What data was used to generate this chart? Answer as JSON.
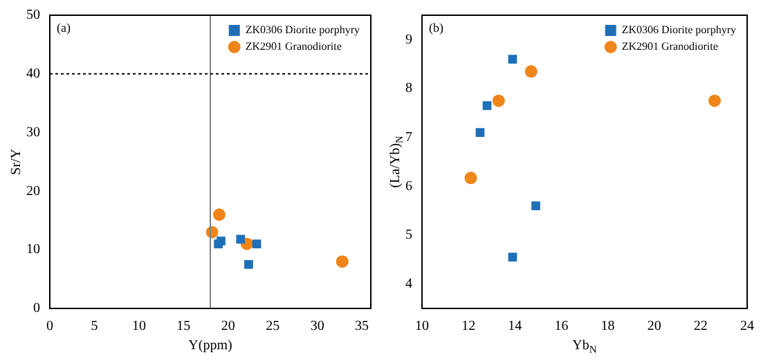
{
  "chart_data": [
    {
      "type": "scatter",
      "xlabel": "Y(ppm)",
      "ylabel": "Sr/Y",
      "annotations": [
        "(a)"
      ],
      "xlim": [
        0,
        36
      ],
      "xticks": [
        0,
        5,
        10,
        15,
        20,
        25,
        30,
        35
      ],
      "ylim": [
        0,
        50
      ],
      "yticks": [
        0,
        10,
        20,
        30,
        40,
        50
      ],
      "grid": false,
      "legend": "top right",
      "ref_lines": [
        {
          "axis": "x",
          "value": 18,
          "color": "#808080",
          "line_style": "solid"
        },
        {
          "axis": "y",
          "value": 40,
          "color": "#000000",
          "line_style": "dotted"
        }
      ],
      "series": [
        {
          "name": "ZK0306 Diorite porphyry",
          "color": "#1f6fb8",
          "marker": "square",
          "x": [
            18.9,
            19.2,
            21.4,
            23.2,
            22.3
          ],
          "values": [
            11,
            11.5,
            11.8,
            11,
            7.5
          ]
        },
        {
          "name": "ZK2901 Granodiorite",
          "color": "#f0861a",
          "marker": "circle",
          "x": [
            18.2,
            19,
            22.1,
            32.8
          ],
          "values": [
            13,
            16,
            11,
            8
          ]
        }
      ]
    },
    {
      "type": "scatter",
      "xlabel": "Yb$_{N}$",
      "ylabel": "(La/Yb)$_{N}$",
      "annotations": [
        "(b)"
      ],
      "xlim": [
        10,
        24
      ],
      "xticks": [
        10,
        12,
        14,
        16,
        18,
        20,
        22,
        24
      ],
      "ylim": [
        3.5,
        9.5
      ],
      "yticks": [
        4,
        5,
        6,
        7,
        8,
        9
      ],
      "grid": false,
      "legend": "top right",
      "series": [
        {
          "name": "ZK0306 Diorite porphyry",
          "color": "#1f6fb8",
          "marker": "square",
          "x": [
            13.9,
            12.8,
            12.5,
            14.9,
            13.9
          ],
          "values": [
            8.6,
            7.65,
            7.1,
            5.6,
            4.55
          ]
        },
        {
          "name": "ZK2901 Granodiorite",
          "color": "#f0861a",
          "marker": "circle",
          "x": [
            14.7,
            13.3,
            12.1,
            22.6
          ],
          "values": [
            8.35,
            7.75,
            6.17,
            7.75
          ]
        }
      ]
    }
  ]
}
